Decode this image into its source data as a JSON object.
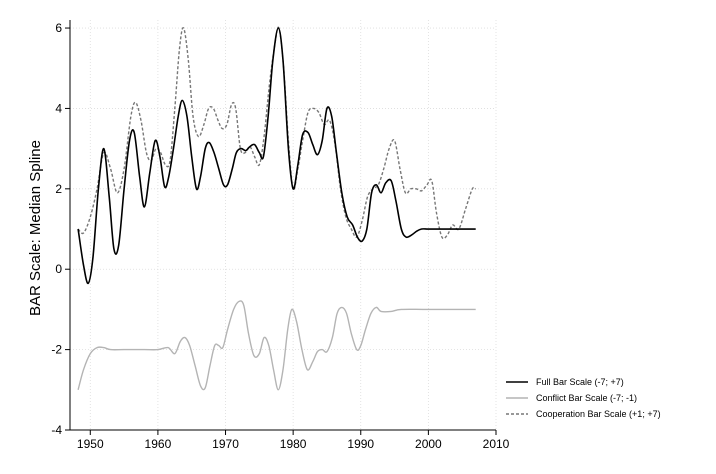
{
  "chart_data": {
    "type": "line",
    "title": "",
    "xlabel": "",
    "ylabel": "BAR Scale: Median Spline",
    "xlim": [
      1947,
      2010
    ],
    "ylim": [
      -4,
      6.2
    ],
    "xticks": [
      1950,
      1960,
      1970,
      1980,
      1990,
      2000,
      2010
    ],
    "yticks": [
      -4,
      -2,
      0,
      2,
      4,
      6
    ],
    "grid": true,
    "legend_position": "bottom-right",
    "series": [
      {
        "name": "Full Bar Scale (-7; +7)",
        "color": "#000000",
        "dash": "solid",
        "points": [
          [
            1948.2,
            1.0
          ],
          [
            1949,
            0.1
          ],
          [
            1949.7,
            -0.35
          ],
          [
            1950.4,
            0.3
          ],
          [
            1951.2,
            2.0
          ],
          [
            1952,
            3.0
          ],
          [
            1952.8,
            1.8
          ],
          [
            1953.5,
            0.5
          ],
          [
            1954.2,
            0.6
          ],
          [
            1955,
            2.0
          ],
          [
            1955.8,
            3.2
          ],
          [
            1956.5,
            3.4
          ],
          [
            1957.3,
            2.3
          ],
          [
            1958,
            1.55
          ],
          [
            1958.8,
            2.4
          ],
          [
            1959.6,
            3.2
          ],
          [
            1960.3,
            2.8
          ],
          [
            1961,
            2.05
          ],
          [
            1961.6,
            2.3
          ],
          [
            1962.3,
            3.0
          ],
          [
            1963,
            3.8
          ],
          [
            1963.6,
            4.2
          ],
          [
            1964.3,
            3.8
          ],
          [
            1965,
            2.8
          ],
          [
            1965.7,
            2.0
          ],
          [
            1966.3,
            2.3
          ],
          [
            1967,
            3.0
          ],
          [
            1967.6,
            3.15
          ],
          [
            1968.3,
            2.9
          ],
          [
            1969,
            2.5
          ],
          [
            1969.7,
            2.1
          ],
          [
            1970.3,
            2.1
          ],
          [
            1971,
            2.5
          ],
          [
            1971.6,
            2.9
          ],
          [
            1972.3,
            3.0
          ],
          [
            1973,
            2.95
          ],
          [
            1973.6,
            3.05
          ],
          [
            1974.3,
            3.1
          ],
          [
            1975,
            2.9
          ],
          [
            1975.6,
            2.8
          ],
          [
            1976.3,
            3.8
          ],
          [
            1977,
            5.2
          ],
          [
            1977.8,
            6.0
          ],
          [
            1978.5,
            5.2
          ],
          [
            1979.3,
            3.0
          ],
          [
            1980,
            2.0
          ],
          [
            1980.7,
            2.6
          ],
          [
            1981.4,
            3.35
          ],
          [
            1982.2,
            3.4
          ],
          [
            1982.9,
            3.1
          ],
          [
            1983.6,
            2.85
          ],
          [
            1984.3,
            3.2
          ],
          [
            1985,
            4.0
          ],
          [
            1985.7,
            3.8
          ],
          [
            1986.4,
            2.9
          ],
          [
            1987.2,
            1.9
          ],
          [
            1988,
            1.3
          ],
          [
            1988.8,
            1.1
          ],
          [
            1989.5,
            0.8
          ],
          [
            1990.2,
            0.7
          ],
          [
            1990.9,
            1.0
          ],
          [
            1991.6,
            1.9
          ],
          [
            1992.3,
            2.1
          ],
          [
            1993,
            1.9
          ],
          [
            1993.7,
            2.15
          ],
          [
            1994.5,
            2.2
          ],
          [
            1995.2,
            1.7
          ],
          [
            1996,
            1.0
          ],
          [
            1996.7,
            0.8
          ],
          [
            1997.5,
            0.85
          ],
          [
            1998.3,
            0.95
          ],
          [
            1999,
            1.0
          ],
          [
            2000,
            1.0
          ],
          [
            2002,
            1.0
          ],
          [
            2004,
            1.0
          ],
          [
            2007,
            1.0
          ]
        ]
      },
      {
        "name": "Conflict Bar Scale (-7; -1)",
        "color": "#b4b4b4",
        "dash": "solid",
        "points": [
          [
            1948.2,
            -3.0
          ],
          [
            1949,
            -2.5
          ],
          [
            1950,
            -2.1
          ],
          [
            1951,
            -1.95
          ],
          [
            1952,
            -1.95
          ],
          [
            1953,
            -2.0
          ],
          [
            1955,
            -2.0
          ],
          [
            1958,
            -2.0
          ],
          [
            1960,
            -2.0
          ],
          [
            1961.5,
            -1.95
          ],
          [
            1962.5,
            -2.1
          ],
          [
            1963.3,
            -1.8
          ],
          [
            1964,
            -1.7
          ],
          [
            1964.7,
            -1.9
          ],
          [
            1965.5,
            -2.4
          ],
          [
            1966.3,
            -2.9
          ],
          [
            1967,
            -2.95
          ],
          [
            1967.7,
            -2.4
          ],
          [
            1968.4,
            -1.9
          ],
          [
            1969,
            -1.9
          ],
          [
            1969.6,
            -1.95
          ],
          [
            1970.3,
            -1.5
          ],
          [
            1971.2,
            -1.0
          ],
          [
            1972,
            -0.8
          ],
          [
            1972.7,
            -0.9
          ],
          [
            1973.4,
            -1.6
          ],
          [
            1974.2,
            -2.15
          ],
          [
            1975,
            -2.1
          ],
          [
            1975.7,
            -1.7
          ],
          [
            1976.4,
            -1.9
          ],
          [
            1977.1,
            -2.5
          ],
          [
            1977.8,
            -3.0
          ],
          [
            1978.5,
            -2.5
          ],
          [
            1979.2,
            -1.5
          ],
          [
            1979.8,
            -1.0
          ],
          [
            1980.5,
            -1.3
          ],
          [
            1981.3,
            -2.0
          ],
          [
            1982.1,
            -2.5
          ],
          [
            1982.9,
            -2.3
          ],
          [
            1983.6,
            -2.05
          ],
          [
            1984.3,
            -2.0
          ],
          [
            1985,
            -2.05
          ],
          [
            1985.8,
            -1.7
          ],
          [
            1986.5,
            -1.1
          ],
          [
            1987.2,
            -0.95
          ],
          [
            1987.9,
            -1.1
          ],
          [
            1988.6,
            -1.6
          ],
          [
            1989.4,
            -2.0
          ],
          [
            1990,
            -1.9
          ],
          [
            1990.7,
            -1.5
          ],
          [
            1991.5,
            -1.1
          ],
          [
            1992.3,
            -0.95
          ],
          [
            1993,
            -1.05
          ],
          [
            1994.5,
            -1.05
          ],
          [
            1996,
            -1.0
          ],
          [
            2000,
            -1.0
          ],
          [
            2007,
            -1.0
          ]
        ]
      },
      {
        "name": "Cooperation Bar Scale (+1; +7)",
        "color": "#777777",
        "dash": "3,2",
        "points": [
          [
            1948.2,
            1.0
          ],
          [
            1949,
            0.9
          ],
          [
            1950,
            1.3
          ],
          [
            1951,
            2.0
          ],
          [
            1952,
            2.9
          ],
          [
            1953,
            2.5
          ],
          [
            1954,
            1.9
          ],
          [
            1955,
            2.5
          ],
          [
            1956,
            3.8
          ],
          [
            1956.7,
            4.15
          ],
          [
            1957.5,
            3.7
          ],
          [
            1958.3,
            2.9
          ],
          [
            1959,
            2.7
          ],
          [
            1959.7,
            3.0
          ],
          [
            1960.4,
            2.9
          ],
          [
            1961.1,
            2.6
          ],
          [
            1961.8,
            2.7
          ],
          [
            1962.5,
            4.0
          ],
          [
            1963.2,
            5.5
          ],
          [
            1963.8,
            6.0
          ],
          [
            1964.5,
            5.2
          ],
          [
            1965.2,
            3.8
          ],
          [
            1966,
            3.3
          ],
          [
            1966.8,
            3.6
          ],
          [
            1967.5,
            4.0
          ],
          [
            1968.2,
            4.0
          ],
          [
            1968.9,
            3.7
          ],
          [
            1969.5,
            3.5
          ],
          [
            1970.2,
            3.6
          ],
          [
            1970.9,
            4.1
          ],
          [
            1971.5,
            4.0
          ],
          [
            1972.2,
            3.0
          ],
          [
            1972.9,
            2.9
          ],
          [
            1973.6,
            3.05
          ],
          [
            1974.3,
            2.8
          ],
          [
            1975,
            2.6
          ],
          [
            1975.7,
            3.3
          ],
          [
            1976.5,
            4.6
          ],
          [
            1977.3,
            5.6
          ],
          [
            1977.9,
            6.0
          ],
          [
            1978.6,
            5.0
          ],
          [
            1979.3,
            3.2
          ],
          [
            1980,
            2.0
          ],
          [
            1980.7,
            2.5
          ],
          [
            1981.4,
            3.2
          ],
          [
            1982.2,
            3.9
          ],
          [
            1983,
            4.0
          ],
          [
            1983.8,
            3.9
          ],
          [
            1984.6,
            3.6
          ],
          [
            1985.4,
            3.7
          ],
          [
            1986.2,
            3.1
          ],
          [
            1987,
            2.0
          ],
          [
            1987.8,
            1.3
          ],
          [
            1988.6,
            1.0
          ],
          [
            1989.4,
            0.8
          ],
          [
            1990.2,
            1.2
          ],
          [
            1991,
            1.8
          ],
          [
            1991.8,
            2.0
          ],
          [
            1992.6,
            2.1
          ],
          [
            1993.4,
            2.5
          ],
          [
            1994.2,
            3.0
          ],
          [
            1995,
            3.2
          ],
          [
            1995.8,
            2.5
          ],
          [
            1996.6,
            1.9
          ],
          [
            1997.4,
            2.0
          ],
          [
            1998.2,
            2.0
          ],
          [
            1999,
            1.95
          ],
          [
            1999.8,
            2.1
          ],
          [
            2000.5,
            2.2
          ],
          [
            2001.2,
            1.4
          ],
          [
            2002,
            0.8
          ],
          [
            2002.8,
            0.85
          ],
          [
            2003.6,
            1.1
          ],
          [
            2004.5,
            1.0
          ],
          [
            2005.5,
            1.5
          ],
          [
            2006.5,
            2.0
          ],
          [
            2007,
            2.0
          ]
        ]
      }
    ]
  }
}
